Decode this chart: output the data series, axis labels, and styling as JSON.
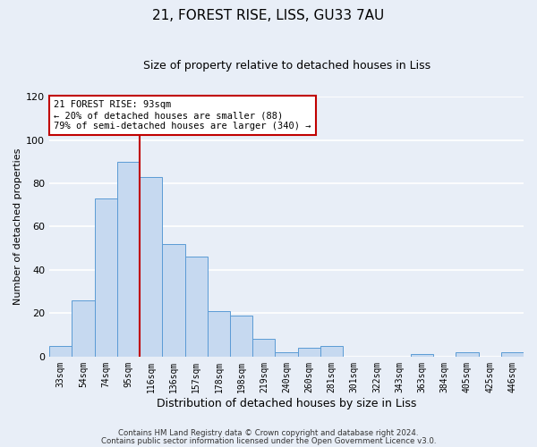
{
  "title": "21, FOREST RISE, LISS, GU33 7AU",
  "subtitle": "Size of property relative to detached houses in Liss",
  "xlabel": "Distribution of detached houses by size in Liss",
  "ylabel": "Number of detached properties",
  "bar_labels": [
    "33sqm",
    "54sqm",
    "74sqm",
    "95sqm",
    "116sqm",
    "136sqm",
    "157sqm",
    "178sqm",
    "198sqm",
    "219sqm",
    "240sqm",
    "260sqm",
    "281sqm",
    "301sqm",
    "322sqm",
    "343sqm",
    "363sqm",
    "384sqm",
    "405sqm",
    "425sqm",
    "446sqm"
  ],
  "bar_values": [
    5,
    26,
    73,
    90,
    83,
    52,
    46,
    21,
    19,
    8,
    2,
    4,
    5,
    0,
    0,
    0,
    1,
    0,
    2,
    0,
    2
  ],
  "bar_color": "#c6d9f0",
  "bar_edge_color": "#5b9bd5",
  "ylim": [
    0,
    120
  ],
  "yticks": [
    0,
    20,
    40,
    60,
    80,
    100,
    120
  ],
  "vline_x": 3.5,
  "vline_color": "#c00000",
  "annotation_title": "21 FOREST RISE: 93sqm",
  "annotation_line1": "← 20% of detached houses are smaller (88)",
  "annotation_line2": "79% of semi-detached houses are larger (340) →",
  "annotation_box_color": "#ffffff",
  "annotation_box_edge": "#c00000",
  "footer1": "Contains HM Land Registry data © Crown copyright and database right 2024.",
  "footer2": "Contains public sector information licensed under the Open Government Licence v3.0.",
  "bg_color": "#e8eef7",
  "grid_color": "#ffffff",
  "title_fontsize": 11,
  "subtitle_fontsize": 9,
  "ylabel_fontsize": 8,
  "xlabel_fontsize": 9
}
